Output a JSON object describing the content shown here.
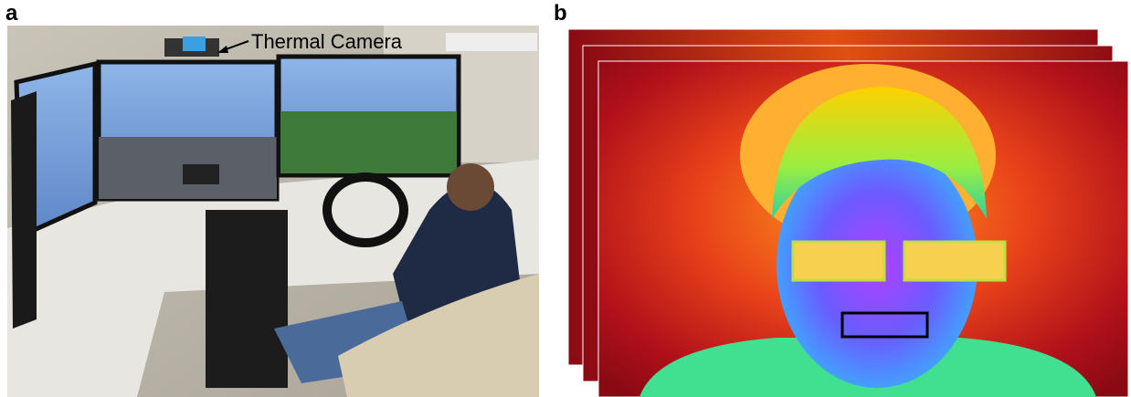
{
  "panels": [
    {
      "label": "a",
      "annotation": "Thermal Camera"
    },
    {
      "label": "b"
    }
  ]
}
